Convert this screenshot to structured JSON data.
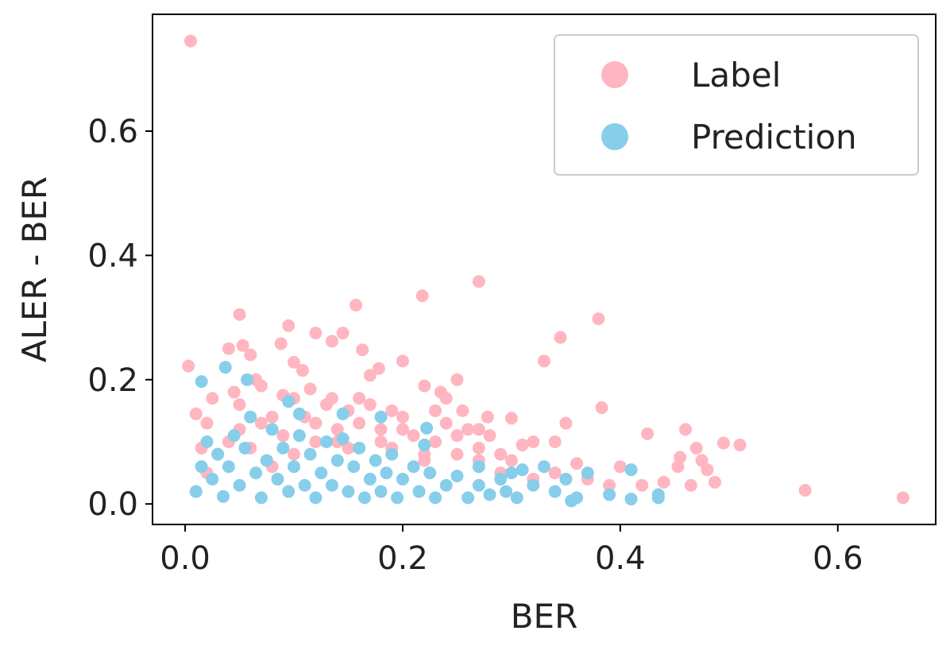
{
  "chart_data": {
    "type": "scatter",
    "xlabel": "BER",
    "ylabel": "ALER - BER",
    "xlim": [
      -0.03,
      0.69
    ],
    "ylim": [
      -0.033,
      0.788
    ],
    "xticks": [
      {
        "value": 0,
        "label": "0.0"
      },
      0.2,
      0.4,
      0.6
    ],
    "yticks": [
      {
        "value": 0,
        "label": "0.0"
      },
      0.2,
      0.4,
      0.6
    ],
    "legend": "upper right",
    "series": [
      {
        "name": "Label",
        "color": "#ffb6c1",
        "x": [
          0.005,
          0.003,
          0.27,
          0.218,
          0.157,
          0.05,
          0.38,
          0.095,
          0.145,
          0.12,
          0.345,
          0.135,
          0.04,
          0.053,
          0.088,
          0.163,
          0.06,
          0.33,
          0.2,
          0.1,
          0.065,
          0.178,
          0.108,
          0.17,
          0.25,
          0.22,
          0.235,
          0.24,
          0.383,
          0.255,
          0.3,
          0.278,
          0.35,
          0.425,
          0.46,
          0.495,
          0.51,
          0.47,
          0.455,
          0.475,
          0.48,
          0.453,
          0.44,
          0.465,
          0.487,
          0.57,
          0.66,
          0.4,
          0.42,
          0.36,
          0.32,
          0.31,
          0.34,
          0.29,
          0.27,
          0.25,
          0.2,
          0.15,
          0.1,
          0.05,
          0.01,
          0.02,
          0.08,
          0.12,
          0.18,
          0.22,
          0.14,
          0.01,
          0.02,
          0.03,
          0.04,
          0.05,
          0.06,
          0.07,
          0.08,
          0.09,
          0.1,
          0.11,
          0.12,
          0.13,
          0.14,
          0.15,
          0.16,
          0.17,
          0.18,
          0.19,
          0.2,
          0.21,
          0.22,
          0.23,
          0.24,
          0.25,
          0.26,
          0.27,
          0.28,
          0.29,
          0.3,
          0.32,
          0.34,
          0.37,
          0.39,
          0.025,
          0.045,
          0.07,
          0.09,
          0.115,
          0.135,
          0.16,
          0.19,
          0.23,
          0.27,
          0.015
        ],
        "y": [
          0.745,
          0.222,
          0.358,
          0.335,
          0.32,
          0.305,
          0.298,
          0.287,
          0.275,
          0.275,
          0.268,
          0.262,
          0.25,
          0.255,
          0.258,
          0.248,
          0.24,
          0.23,
          0.23,
          0.228,
          0.2,
          0.218,
          0.215,
          0.207,
          0.2,
          0.19,
          0.18,
          0.17,
          0.155,
          0.15,
          0.138,
          0.14,
          0.13,
          0.113,
          0.12,
          0.098,
          0.095,
          0.09,
          0.075,
          0.07,
          0.055,
          0.06,
          0.035,
          0.03,
          0.035,
          0.022,
          0.01,
          0.06,
          0.03,
          0.065,
          0.1,
          0.095,
          0.1,
          0.08,
          0.09,
          0.11,
          0.12,
          0.15,
          0.17,
          0.16,
          0.145,
          0.13,
          0.14,
          0.13,
          0.1,
          0.08,
          0.1,
          0.02,
          0.05,
          0.08,
          0.1,
          0.12,
          0.09,
          0.13,
          0.06,
          0.11,
          0.08,
          0.14,
          0.1,
          0.16,
          0.12,
          0.09,
          0.13,
          0.16,
          0.12,
          0.09,
          0.14,
          0.11,
          0.07,
          0.1,
          0.13,
          0.08,
          0.12,
          0.07,
          0.11,
          0.05,
          0.07,
          0.04,
          0.05,
          0.04,
          0.03,
          0.17,
          0.18,
          0.19,
          0.175,
          0.185,
          0.17,
          0.17,
          0.15,
          0.15,
          0.12,
          0.09
        ]
      },
      {
        "name": "Prediction",
        "color": "#87ceeb",
        "x": [
          0.015,
          0.037,
          0.057,
          0.095,
          0.105,
          0.145,
          0.18,
          0.222,
          0.22,
          0.27,
          0.33,
          0.37,
          0.41,
          0.435,
          0.41,
          0.435,
          0.39,
          0.355,
          0.36,
          0.3,
          0.295,
          0.31,
          0.01,
          0.015,
          0.02,
          0.025,
          0.03,
          0.035,
          0.04,
          0.045,
          0.05,
          0.055,
          0.06,
          0.065,
          0.07,
          0.075,
          0.08,
          0.085,
          0.09,
          0.095,
          0.1,
          0.105,
          0.11,
          0.115,
          0.12,
          0.125,
          0.13,
          0.135,
          0.14,
          0.145,
          0.15,
          0.155,
          0.16,
          0.165,
          0.17,
          0.175,
          0.18,
          0.185,
          0.19,
          0.195,
          0.2,
          0.21,
          0.215,
          0.225,
          0.23,
          0.24,
          0.25,
          0.26,
          0.27,
          0.28,
          0.29,
          0.305,
          0.32,
          0.34,
          0.35
        ],
        "y": [
          0.197,
          0.22,
          0.2,
          0.165,
          0.145,
          0.145,
          0.14,
          0.122,
          0.095,
          0.06,
          0.06,
          0.05,
          0.055,
          0.01,
          0.008,
          0.015,
          0.015,
          0.005,
          0.01,
          0.05,
          0.02,
          0.055,
          0.02,
          0.06,
          0.1,
          0.04,
          0.08,
          0.012,
          0.06,
          0.11,
          0.03,
          0.09,
          0.14,
          0.05,
          0.01,
          0.07,
          0.12,
          0.04,
          0.09,
          0.02,
          0.06,
          0.11,
          0.03,
          0.08,
          0.01,
          0.05,
          0.1,
          0.03,
          0.07,
          0.105,
          0.02,
          0.06,
          0.09,
          0.01,
          0.04,
          0.07,
          0.02,
          0.05,
          0.08,
          0.01,
          0.04,
          0.06,
          0.02,
          0.05,
          0.01,
          0.03,
          0.045,
          0.01,
          0.03,
          0.015,
          0.04,
          0.01,
          0.03,
          0.02,
          0.04
        ]
      }
    ]
  }
}
